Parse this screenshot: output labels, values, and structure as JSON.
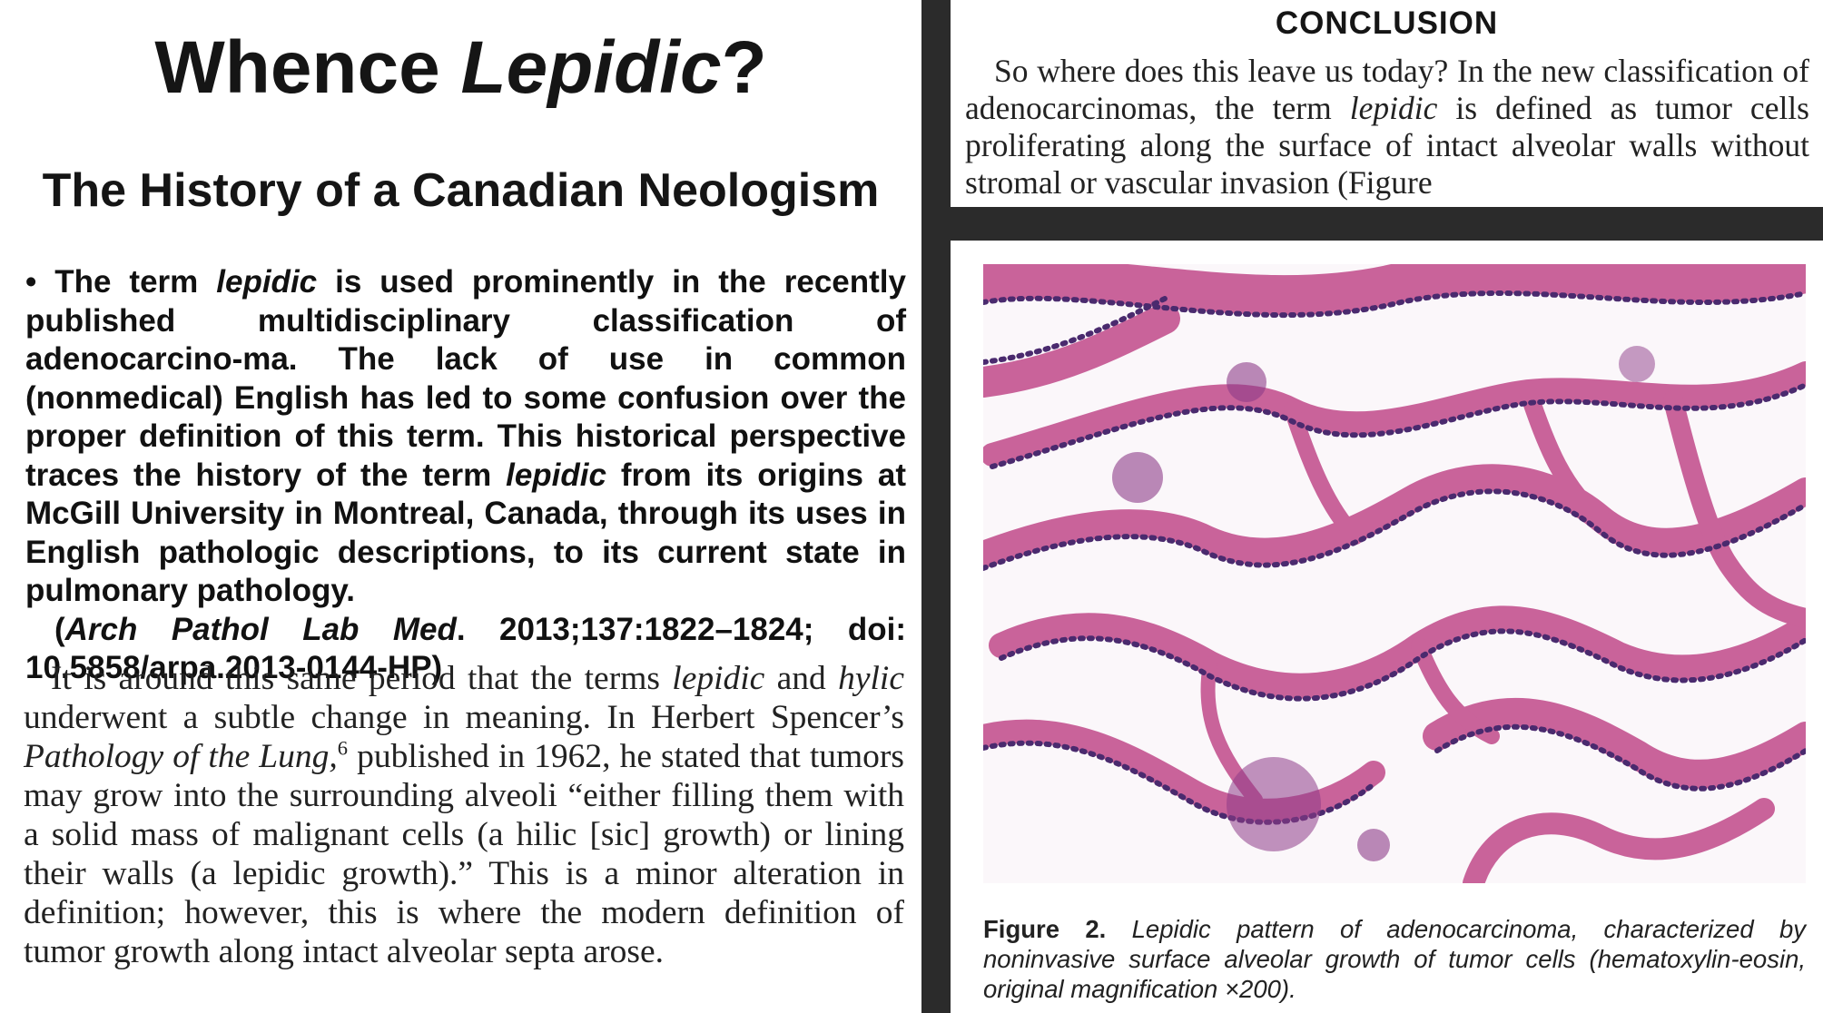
{
  "left": {
    "title_main": "Whence ",
    "title_term": "Lepidic",
    "title_end": "?",
    "subtitle": "The History of a Canadian Neologism",
    "abstract": {
      "bullet": "•",
      "p1": " The term ",
      "t1": "lepidic",
      "p2": " is used prominently in the recently published multidisciplinary classification of adenocarcino-ma. The lack of use in common (nonmedical) English has led to some confusion over the proper definition of this term. This historical perspective traces the history of the term ",
      "t2": "lepidic",
      "p3": " from its origins at McGill University in Montreal, Canada, through its uses in English pathologic descriptions, to its current state in pulmonary pathology.",
      "cite_open": "(",
      "journal": "Arch Pathol Lab Med",
      "cite_rest": ". 2013;137:1822–1824; doi: 10.5858/arpa.2013-0144-HP)"
    },
    "body": {
      "p1": "It is around this same period that the terms ",
      "t1": "lepidic",
      "p2": " and ",
      "t2": "hylic",
      "p3": " underwent a subtle change in meaning. In Herbert Spencer’s ",
      "book": "Pathology of the Lung,",
      "ref": "6",
      "p4": " published in 1962, he stated that tumors may grow into the surrounding alveoli “either filling them with a solid mass of malignant cells (a hilic [sic] growth) or lining their walls (a lepidic growth).” This is a minor alteration in definition; however, this is where the modern definition of tumor growth along intact alveolar septa arose."
    }
  },
  "right": {
    "conclusion_heading": "CONCLUSION",
    "conclusion": {
      "p1": "So where does this leave us today? In the new classification of adenocarcinomas, the term ",
      "term": "lepidic",
      "p2": " is defined as tumor cells proliferating along the surface of intact alveolar walls without stromal or vascular invasion (Figure"
    },
    "figure": {
      "label": "Figure 2.",
      "caption": " Lepidic pattern of adenocarcinoma, characterized by noninvasive surface alveolar growth of tumor cells (hematoxylin-eosin, original magnification ×200)."
    }
  },
  "colors": {
    "divider": "#2b2b2b",
    "stroma": "#c9639a",
    "nuclei": "#4a2a6e",
    "background": "#ffffff"
  }
}
